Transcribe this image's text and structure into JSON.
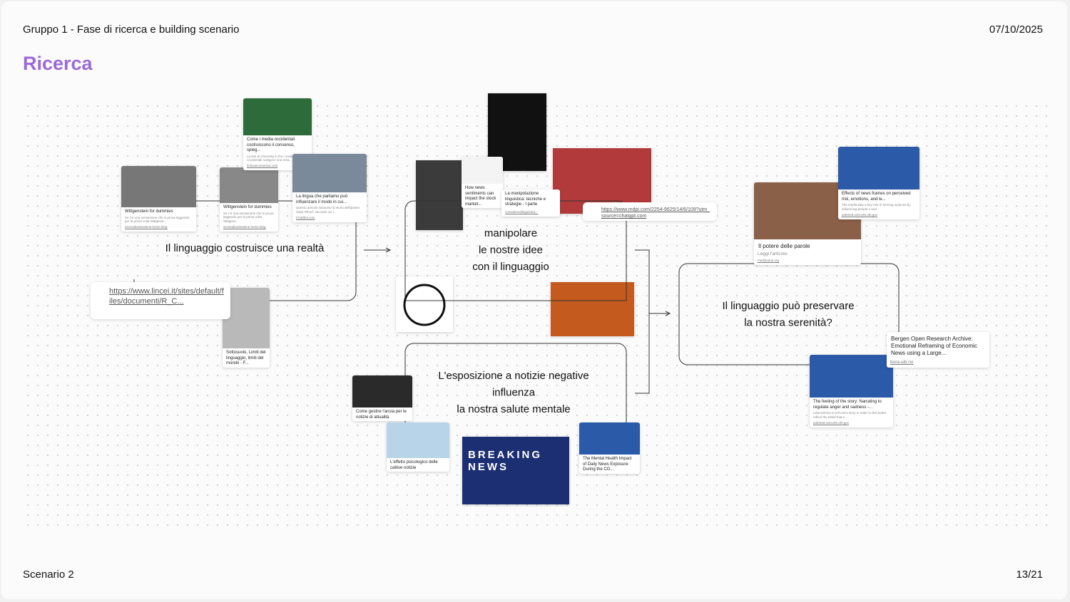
{
  "header": {
    "left": "Gruppo 1 - Fase di ricerca e building scenario",
    "date": "07/10/2025"
  },
  "title": "Ricerca",
  "nodes": [
    {
      "lines": [
        "Il linguaggio costruisce una realtà"
      ]
    },
    {
      "lines": [
        "manipolare",
        "le nostre idee",
        "con il linguaggio"
      ]
    },
    {
      "lines": [
        "L'esposizione a notizie negative",
        "influenza",
        "la nostra salute mentale"
      ]
    },
    {
      "lines": [
        "Il linguaggio può preservare",
        "la nostra serenità?"
      ]
    }
  ],
  "cards": [
    {
      "title": "Wittgenstein for dummies",
      "desc": "Se c'è una sensazione che si prova leggendo per la prima volta Wittgenst...",
      "source": "aromadiweissteine.home.blog"
    },
    {
      "title": "Wittgenstein for dummies",
      "desc": "Se c'è una sensazione che si prova leggendo per la prima volta Wittgens...",
      "source": "aromadiweissteine.home.blog"
    },
    {
      "title": "Come i media occidentali costruiscono il consenso, spieg...",
      "desc": "La tesi di Chomsky è che i media occidentali svolgono una resa...",
      "source": "kriticaeconomica.com"
    },
    {
      "title": "La lingua che parliamo può influenzare il modo in cui...",
      "desc": "Questo articolo riassume la storia dell'ipotesi Sapir-Whorf, secondo cui i...",
      "source": "il bobboi.com"
    },
    {
      "title": "Sottosuolo, Limiti del linguaggio, limiti del mondo - F...",
      "desc": "",
      "source": ""
    },
    {
      "title": "How news sentiments can impact the stock market...",
      "desc": "",
      "source": ""
    },
    {
      "title": "La manipolazione linguistica: tecniche e strategie - I parte",
      "desc": "",
      "source": "consulenzalinguistica..."
    },
    {
      "title": "Il potere delle parole",
      "desc": "Leggi l'articolo.",
      "source": "medimutua.org"
    },
    {
      "title": "Effects of news frames on perceived risk, emotions, and le...",
      "desc": "The media play a key role in forming opinions by influencing people´s and...",
      "source": "pubmed.ncbi.nlm.nih.gov"
    },
    {
      "title": "The feeling of the story: Narrating to regulate anger and sadness -...",
      "desc": "Admonitions to tell one's story in order to feel better reflect the belief that n...",
      "source": "pubmed.ncbi.nlm.nih.gov"
    },
    {
      "title": "The Mental Health Impact of Daily News Exposure During the CO...",
      "desc": "",
      "source": ""
    },
    {
      "title": "Come gestire l'ansia per le notizie di attualità",
      "desc": "",
      "source": ""
    },
    {
      "title": "L'effetto psicologico delle cattive notizie",
      "desc": "",
      "source": ""
    },
    {
      "title": "Bergen Open Research Archive: Emotional Reframing of Economic News using a Large...",
      "desc": "",
      "source": "bora.uib.no"
    }
  ],
  "links": [
    "https://www.lincei.it/sites/default/files/documenti/R_C...",
    "https://www.mdpi.com/2254-9625/14/6/109?utm_source=chatgpt.com"
  ],
  "image_text": "BREAKING NEWS",
  "footer": {
    "left": "Scenario 2",
    "page": "13/21"
  }
}
